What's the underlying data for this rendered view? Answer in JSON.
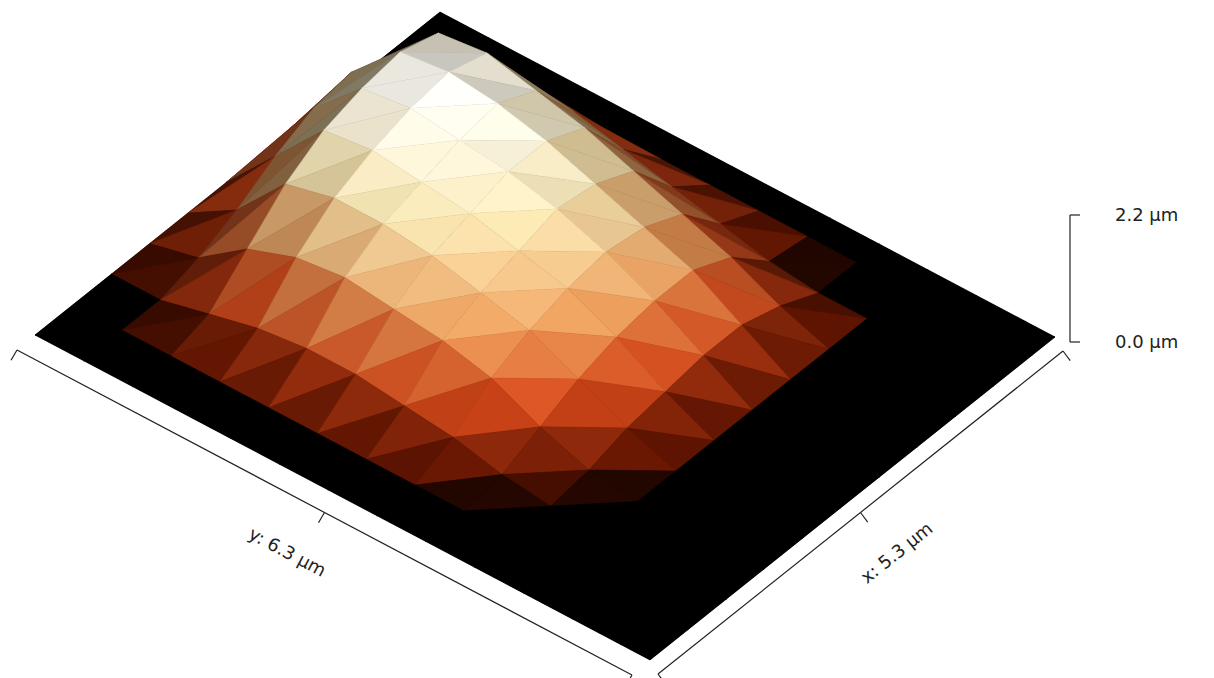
{
  "chart_data": {
    "type": "surface",
    "x_label": "x: 5.3 µm",
    "y_label": "y: 6.3 µm",
    "xlim": [
      0,
      5.3
    ],
    "ylim": [
      0,
      6.3
    ],
    "zlim": [
      0,
      2.2
    ],
    "zticks": [
      {
        "value": 0,
        "label": "0.0 µm"
      },
      {
        "value": 2.2,
        "label": "2.2 µm"
      }
    ],
    "x": [
      0,
      0.5,
      1,
      1.5,
      2,
      2.5,
      3,
      3.5,
      4,
      4.5,
      5,
      5.3
    ],
    "y": [
      0,
      0.5,
      1,
      1.5,
      2,
      2.5,
      3,
      3.5,
      4,
      4.5,
      5,
      5.5,
      6,
      6.3
    ],
    "z": [
      [
        0,
        0,
        0,
        0,
        0,
        0,
        0,
        0,
        0,
        0,
        0,
        0
      ],
      [
        0,
        0,
        0,
        0.2,
        0.5,
        0.9,
        1.2,
        1.3,
        1.0,
        0.3,
        0,
        0
      ],
      [
        0,
        0,
        0.2,
        0.8,
        1.4,
        1.8,
        2.0,
        2.1,
        1.9,
        0.8,
        0,
        0
      ],
      [
        0,
        0,
        0.4,
        1.1,
        1.6,
        1.9,
        2.1,
        2.2,
        2.0,
        1.0,
        0,
        0
      ],
      [
        0,
        0,
        0.5,
        1.2,
        1.6,
        1.8,
        2.0,
        2.1,
        1.8,
        0.9,
        0,
        0
      ],
      [
        0,
        0,
        0.5,
        1.1,
        1.5,
        1.7,
        1.9,
        1.9,
        1.6,
        0.7,
        0,
        0
      ],
      [
        0,
        0,
        0.4,
        1.0,
        1.3,
        1.5,
        1.7,
        1.6,
        1.3,
        0.5,
        0,
        0
      ],
      [
        0,
        0,
        0.3,
        0.8,
        1.1,
        1.3,
        1.4,
        1.3,
        1.0,
        0.3,
        0,
        0
      ],
      [
        0,
        0,
        0.1,
        0.4,
        0.7,
        0.9,
        1.0,
        1.0,
        0.7,
        0.1,
        0,
        0
      ],
      [
        0,
        0,
        0,
        0.1,
        0.3,
        0.4,
        0.5,
        0.5,
        0.3,
        0,
        0,
        0
      ],
      [
        0,
        0,
        0,
        0,
        0,
        0,
        0,
        0,
        0,
        0,
        0,
        0
      ],
      [
        0,
        0,
        0,
        0,
        0,
        0,
        0,
        0,
        0,
        0,
        0,
        0
      ],
      [
        0,
        0,
        0,
        0,
        0,
        0,
        0,
        0,
        0,
        0,
        0,
        0
      ],
      [
        0,
        0,
        0,
        0,
        0,
        0,
        0,
        0,
        0,
        0,
        0,
        0
      ]
    ]
  }
}
